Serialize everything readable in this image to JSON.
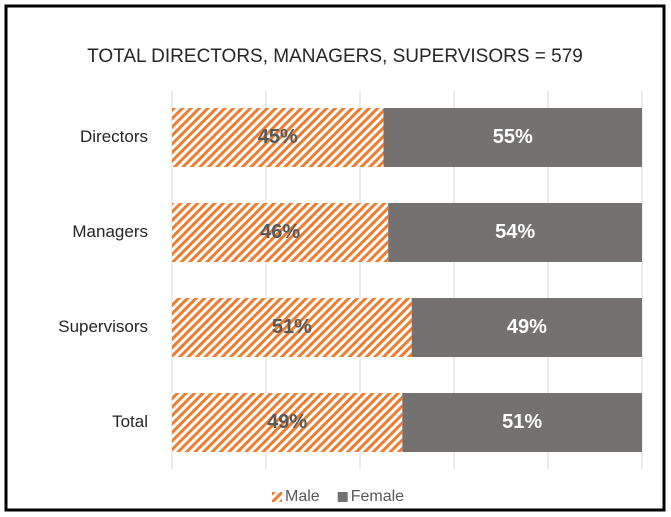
{
  "chart_data": {
    "type": "stacked-bar-horizontal",
    "title": "TOTAL DIRECTORS, MANAGERS, SUPERVISORS = 579",
    "categories": [
      "Directors",
      "Managers",
      "Supervisors",
      "Total"
    ],
    "series": [
      {
        "name": "Male",
        "color": "#ed7d31",
        "hatch": true,
        "values": [
          45,
          46,
          51,
          49
        ],
        "value_labels": [
          "45%",
          "46%",
          "51%",
          "49%"
        ]
      },
      {
        "name": "Female",
        "color": "#767171",
        "hatch": false,
        "values": [
          55,
          54,
          49,
          51
        ],
        "value_labels": [
          "55%",
          "54%",
          "49%",
          "51%"
        ]
      }
    ],
    "xlim": [
      0,
      100
    ],
    "xticks": [
      0,
      20,
      40,
      60,
      80,
      100
    ],
    "grid": true,
    "legend": "bottom"
  }
}
